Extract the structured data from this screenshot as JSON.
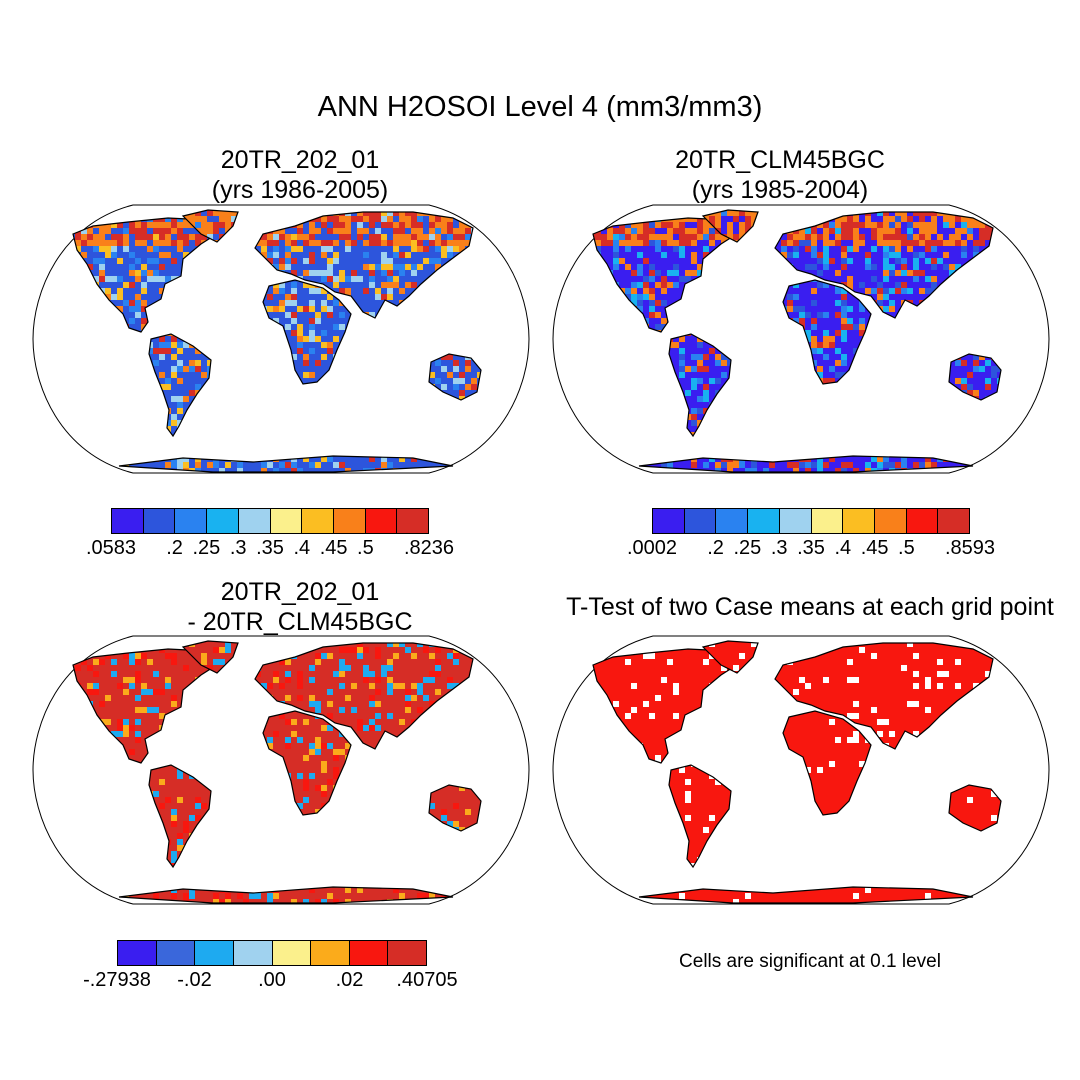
{
  "main_title": "ANN H2OSOI Level 4 (mm3/mm3)",
  "panels": {
    "p1": {
      "title_line1": "20TR_202_01",
      "title_line2": "(yrs 1986-2005)"
    },
    "p2": {
      "title_line1": "20TR_CLM45BGC",
      "title_line2": "(yrs 1985-2004)"
    },
    "p3": {
      "title_line1": "20TR_202_01",
      "title_line2": "- 20TR_CLM45BGC"
    },
    "p4": {
      "title_line1": "T-Test of two Case means at each grid point"
    }
  },
  "colorbars": {
    "cb1": {
      "colors": [
        "#3a1ef0",
        "#2d55dc",
        "#2a82f0",
        "#19b2f0",
        "#9fd2ef",
        "#fbf08c",
        "#fbbe22",
        "#f9801a",
        "#f8170f",
        "#d62d26"
      ],
      "labels": [
        ".0583",
        ".2",
        ".25",
        ".3",
        ".35",
        ".4",
        ".45",
        ".5",
        ".8236"
      ],
      "boundaries": [
        0,
        2,
        3,
        4,
        5,
        6,
        7,
        8,
        10
      ]
    },
    "cb2": {
      "colors": [
        "#3a1ef0",
        "#2d55dc",
        "#2a82f0",
        "#19b2f0",
        "#9fd2ef",
        "#fbf08c",
        "#fbbe22",
        "#f9801a",
        "#f8170f",
        "#d62d26"
      ],
      "labels": [
        ".0002",
        ".2",
        ".25",
        ".3",
        ".35",
        ".4",
        ".45",
        ".5",
        ".8593"
      ],
      "boundaries": [
        0,
        2,
        3,
        4,
        5,
        6,
        7,
        8,
        10
      ]
    },
    "cb3": {
      "colors": [
        "#3a1ef0",
        "#3a67db",
        "#1eaaf0",
        "#a0d2ef",
        "#fbf08c",
        "#fbab1b",
        "#f8170f",
        "#d62d26"
      ],
      "labels": [
        "-.27938",
        "-.02",
        ".00",
        ".02",
        ".40705"
      ],
      "boundaries": [
        0,
        2,
        4,
        6,
        8
      ]
    }
  },
  "significance_note": "Cells are significant at 0.1 level",
  "map_fill": {
    "p1": [
      "#2d55dc",
      "#2a82f0",
      "#9fd2ef",
      "#fbbe22",
      "#f9801a",
      "#d62d26"
    ],
    "p2": [
      "#3a1ef0",
      "#2d55dc",
      "#2a82f0",
      "#19b2f0",
      "#f9801a",
      "#d62d26"
    ],
    "p3": [
      "#d62d26",
      "#d62d26",
      "#d62d26",
      "#f8170f",
      "#fbab1b",
      "#1eaaf0"
    ],
    "p4": [
      "#f8170f",
      "#f8170f",
      "#f8170f",
      "#ffffff"
    ]
  }
}
